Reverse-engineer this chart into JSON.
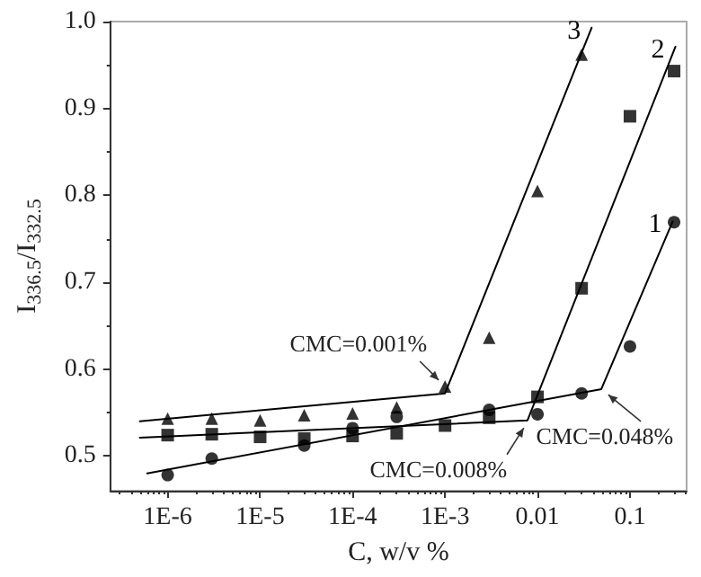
{
  "chart_data": {
    "type": "scatter",
    "xlabel": "C, w/v %",
    "ylabel": "I$_{336.5}$/I$_{332.5}$",
    "log": "x",
    "grid": false,
    "xlim": [
      2.4e-07,
      0.41
    ],
    "xticks": [
      {
        "value": 1e-06,
        "label": "1E-6"
      },
      {
        "value": 1e-05,
        "label": "1E-5"
      },
      {
        "value": 0.0001,
        "label": "1E-4"
      },
      {
        "value": 0.001,
        "label": "1E-3"
      },
      0.01,
      0.1
    ],
    "ylim": [
      0.46,
      1.0
    ],
    "yticks": [
      0.5,
      0.6,
      0.7,
      0.8,
      0.9,
      {
        "value": 1,
        "label": "1.0"
      }
    ],
    "series": [
      {
        "type": "scatter",
        "marker": "circle",
        "color": "#000000",
        "x": [
          1e-06,
          3e-06,
          3e-05,
          0.0001,
          0.0003,
          0.001,
          0.003,
          0.01,
          0.03,
          0.1,
          0.3
        ],
        "values": [
          0.478,
          0.497,
          0.512,
          0.532,
          0.545,
          null,
          0.553,
          0.548,
          0.572,
          0.626,
          0.769
        ]
      },
      {
        "type": "scatter",
        "marker": "square",
        "color": "#000000",
        "x": [
          1e-06,
          3e-06,
          1e-05,
          3e-05,
          0.0001,
          0.0003,
          0.001,
          0.003,
          0.01,
          0.03,
          0.1,
          0.3
        ],
        "values": [
          0.524,
          0.525,
          0.522,
          0.52,
          0.523,
          0.526,
          0.535,
          0.544,
          0.568,
          0.693,
          0.891,
          0.943
        ]
      },
      {
        "type": "scatter",
        "marker": "triangle",
        "color": "#000000",
        "x": [
          1e-06,
          3e-06,
          1e-05,
          3e-05,
          0.0001,
          0.0003,
          0.001,
          0.003,
          0.01,
          0.03
        ],
        "values": [
          0.543,
          0.543,
          0.541,
          0.547,
          0.549,
          0.556,
          0.58,
          0.636,
          0.805,
          0.962
        ]
      },
      {
        "type": "line",
        "name": "1",
        "marker": "none",
        "line_style": "solid",
        "color": "#000000",
        "x": [
          6e-07,
          0.049,
          0.29
        ],
        "values": [
          0.48,
          0.577,
          0.77
        ]
      },
      {
        "type": "line",
        "name": "2",
        "marker": "none",
        "line_style": "solid",
        "color": "#000000",
        "x": [
          5e-07,
          0.0078,
          0.31
        ],
        "values": [
          0.521,
          0.541,
          0.971
        ]
      },
      {
        "type": "line",
        "name": "3",
        "marker": "none",
        "line_style": "solid",
        "color": "#000000",
        "x": [
          5e-07,
          0.001,
          0.0385
        ],
        "values": [
          0.54,
          0.572,
          0.993
        ]
      }
    ],
    "annotations": [
      {
        "text": "CMC=0.001%",
        "x": 0.001,
        "y": 0.58
      },
      {
        "text": "CMC=0.008%",
        "x": 0.008,
        "y": 0.541
      },
      {
        "text": "CMC=0.048%",
        "x": 0.049,
        "y": 0.577
      }
    ]
  }
}
